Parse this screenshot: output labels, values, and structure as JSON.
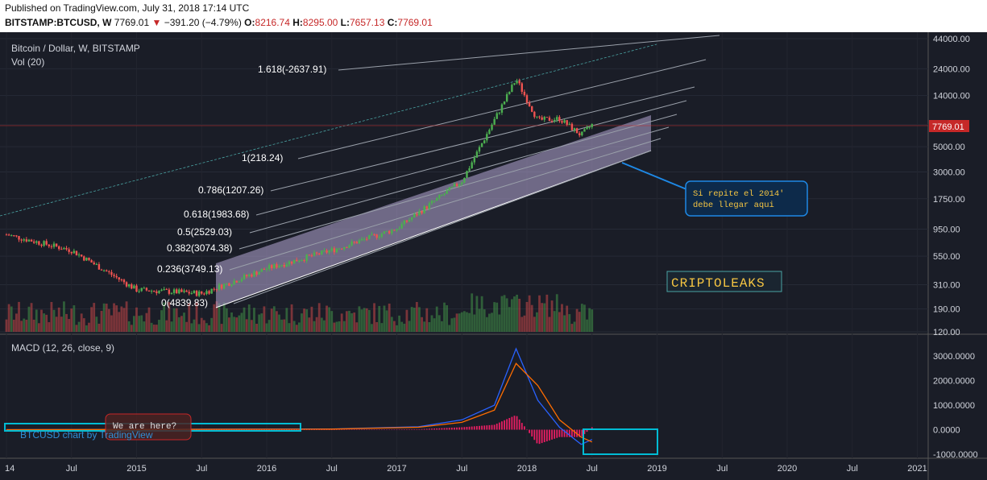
{
  "header": {
    "published": "Published on TradingView.com, July 31, 2018 17:14 UTC",
    "symbol": "BITSTAMP:BTCUSD, W",
    "last": "7769.01",
    "down_arrow": "▼",
    "change": "−391.20 (−4.79%)",
    "o_label": "O:",
    "o_value": "8216.74",
    "h_label": "H:",
    "h_value": "8295.00",
    "l_label": "L:",
    "l_value": "7657.13",
    "c_label": "C:",
    "c_value": "7769.01"
  },
  "pane": {
    "title": "Bitcoin / Dollar, W, BITSTAMP",
    "vol_label": "Vol (20)",
    "macd_label": "MACD (12, 26, close, 9)",
    "watermark": "BTCUSD chart by TradingView",
    "price_tag": "7769.01",
    "callout": "Si repite el 2014'\ndebe llegar aqui",
    "brand": "CRIPTOLEAKS",
    "we_are_here": "We are here?"
  },
  "colors": {
    "background": "#1a1d27",
    "up": "#4caf50",
    "down": "#ef5350",
    "channel": "#b6a7d6",
    "callout": "#1e88e5",
    "brand": "#f5c542",
    "macd_line": "#2962ff",
    "signal_line": "#ff6d00",
    "histogram": "#e91e63",
    "cyan_box": "#00bcd4"
  },
  "chart_data": [
    {
      "type": "line",
      "title": "Bitcoin / Dollar, W, BITSTAMP",
      "scale": "log",
      "ylim": [
        120,
        44000
      ],
      "y_ticks": [
        "44000.00",
        "24000.00",
        "14000.00",
        "7769.01",
        "5000.00",
        "3000.00",
        "1750.00",
        "950.00",
        "550.00",
        "310.00",
        "190.00",
        "120.00"
      ],
      "x_ticks": [
        "14",
        "Jul",
        "2015",
        "Jul",
        "2016",
        "Jul",
        "2017",
        "Jul",
        "2018",
        "Jul",
        "2019",
        "Jul",
        "2020",
        "Jul",
        "2021"
      ],
      "x": [
        "2014-01",
        "2014-07",
        "2015-01",
        "2015-07",
        "2016-01",
        "2016-07",
        "2017-01",
        "2017-07",
        "2017-12",
        "2018-02",
        "2018-04",
        "2018-06",
        "2018-07"
      ],
      "series": [
        {
          "values": [
            850,
            620,
            280,
            260,
            430,
            620,
            960,
            2500,
            19500,
            8500,
            8800,
            6300,
            7769
          ]
        }
      ],
      "fib_levels": [
        {
          "label": "0(4839.83)"
        },
        {
          "label": "0.236(3749.13)"
        },
        {
          "label": "0.382(3074.38)"
        },
        {
          "label": "0.5(2529.03)"
        },
        {
          "label": "0.618(1983.68)"
        },
        {
          "label": "0.786(1207.26)"
        },
        {
          "label": "1(218.24)"
        },
        {
          "label": "1.618(-2637.91)"
        }
      ]
    },
    {
      "type": "line",
      "title": "MACD (12, 26, close, 9)",
      "y_ticks": [
        "3000.0000",
        "2000.0000",
        "1000.0000",
        "0.0000",
        "-1000.0000"
      ],
      "ylim": [
        -1000,
        3300
      ],
      "x": [
        "2014-01",
        "2016-07",
        "2017-03",
        "2017-07",
        "2017-10",
        "2017-12",
        "2018-02",
        "2018-04",
        "2018-06",
        "2018-07"
      ],
      "series": [
        {
          "name": "MACD",
          "values": [
            0,
            30,
            120,
            400,
            1000,
            3300,
            1200,
            100,
            -600,
            -400
          ]
        },
        {
          "name": "Signal",
          "values": [
            0,
            25,
            100,
            300,
            800,
            2700,
            1800,
            400,
            -300,
            -500
          ]
        }
      ]
    }
  ]
}
